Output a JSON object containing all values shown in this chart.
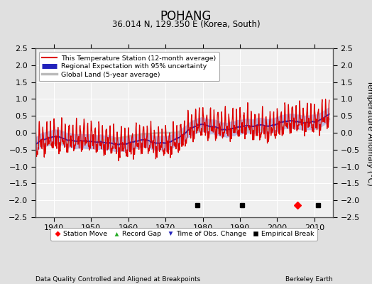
{
  "title": "POHANG",
  "subtitle": "36.014 N, 129.350 E (Korea, South)",
  "ylabel": "Temperature Anomaly (°C)",
  "xlabel_left": "Data Quality Controlled and Aligned at Breakpoints",
  "xlabel_right": "Berkeley Earth",
  "ylim": [
    -2.5,
    2.5
  ],
  "xlim": [
    1935,
    2015
  ],
  "yticks": [
    -2.5,
    -2,
    -1.5,
    -1,
    -0.5,
    0,
    0.5,
    1,
    1.5,
    2,
    2.5
  ],
  "xticks": [
    1940,
    1950,
    1960,
    1970,
    1980,
    1990,
    2000,
    2010
  ],
  "bg_color": "#e0e0e0",
  "plot_bg_color": "#f0f0f0",
  "grid_color": "white",
  "station_color": "#dd0000",
  "regional_color": "#2222bb",
  "regional_fill_color": "#aaaadd",
  "global_color": "#bbbbbb",
  "seed": 12,
  "empirical_breaks": [
    1978.5,
    1990.5,
    2011.0
  ],
  "station_moves": [
    2005.5
  ],
  "obs_changes": [],
  "record_gaps": [],
  "marker_y": -2.15,
  "figsize": [
    5.24,
    4.0
  ],
  "dpi": 100
}
